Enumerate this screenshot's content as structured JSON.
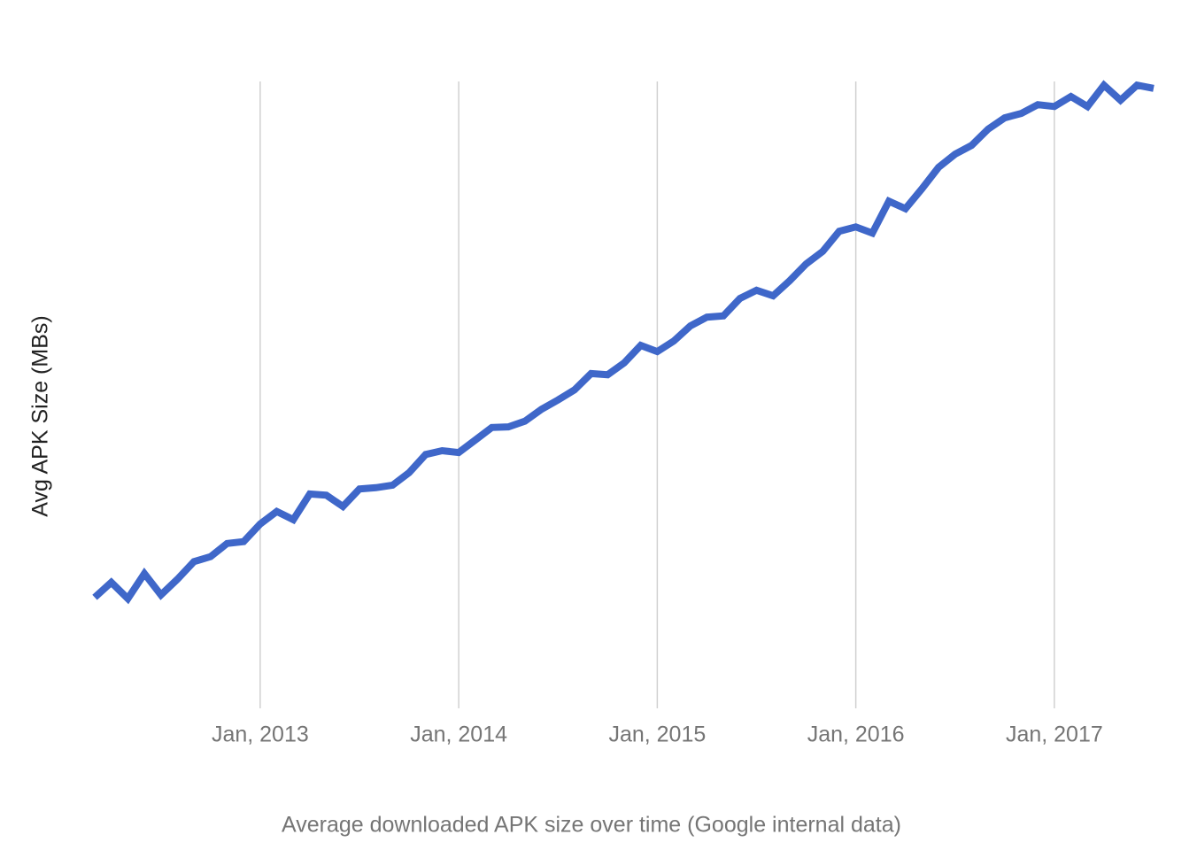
{
  "chart_data": {
    "type": "line",
    "y_label": "Avg APK Size (MBs)",
    "caption": "Average downloaded APK size over time (Google internal data)",
    "x": [
      "2012-03",
      "2012-04",
      "2012-05",
      "2012-06",
      "2012-07",
      "2012-08",
      "2012-09",
      "2012-10",
      "2012-11",
      "2012-12",
      "2013-01",
      "2013-02",
      "2013-03",
      "2013-04",
      "2013-05",
      "2013-06",
      "2013-07",
      "2013-08",
      "2013-09",
      "2013-10",
      "2013-11",
      "2013-12",
      "2014-01",
      "2014-02",
      "2014-03",
      "2014-04",
      "2014-05",
      "2014-06",
      "2014-07",
      "2014-08",
      "2014-09",
      "2014-10",
      "2014-11",
      "2014-12",
      "2015-01",
      "2015-02",
      "2015-03",
      "2015-04",
      "2015-05",
      "2015-06",
      "2015-07",
      "2015-08",
      "2015-09",
      "2015-10",
      "2015-11",
      "2015-12",
      "2016-01",
      "2016-02",
      "2016-03",
      "2016-04",
      "2016-05",
      "2016-06",
      "2016-07",
      "2016-08",
      "2016-09",
      "2016-10",
      "2016-11",
      "2016-12",
      "2017-01",
      "2017-02",
      "2017-03",
      "2017-04",
      "2017-05",
      "2017-06",
      "2017-07"
    ],
    "series": [
      {
        "name": "Avg APK Size",
        "color": "#3f67c9",
        "values": [
          17.7,
          20.1,
          17.5,
          21.5,
          18.1,
          20.6,
          23.4,
          24.2,
          26.3,
          26.6,
          29.4,
          31.4,
          30.1,
          34.2,
          34.0,
          32.2,
          35.0,
          35.2,
          35.6,
          37.6,
          40.5,
          41.1,
          40.8,
          42.8,
          44.8,
          44.9,
          45.8,
          47.7,
          49.2,
          50.8,
          53.4,
          53.2,
          55.1,
          57.9,
          56.9,
          58.6,
          61.0,
          62.4,
          62.6,
          65.4,
          66.7,
          65.8,
          68.2,
          70.9,
          72.9,
          76.1,
          76.8,
          75.8,
          80.9,
          79.7,
          82.9,
          86.3,
          88.4,
          89.8,
          92.4,
          94.2,
          94.9,
          96.3,
          96.0,
          97.6,
          96.0,
          99.4,
          97.0,
          99.4,
          98.9
        ]
      }
    ],
    "xlim": [
      "2012-03",
      "2017-07"
    ],
    "ylim": [
      0,
      100
    ],
    "xticks": [
      {
        "value": "2013-01",
        "label": "Jan, 2013"
      },
      {
        "value": "2014-01",
        "label": "Jan, 2014"
      },
      {
        "value": "2015-01",
        "label": "Jan, 2015"
      },
      {
        "value": "2016-01",
        "label": "Jan, 2016"
      },
      {
        "value": "2017-01",
        "label": "Jan, 2017"
      }
    ],
    "grid": true
  }
}
